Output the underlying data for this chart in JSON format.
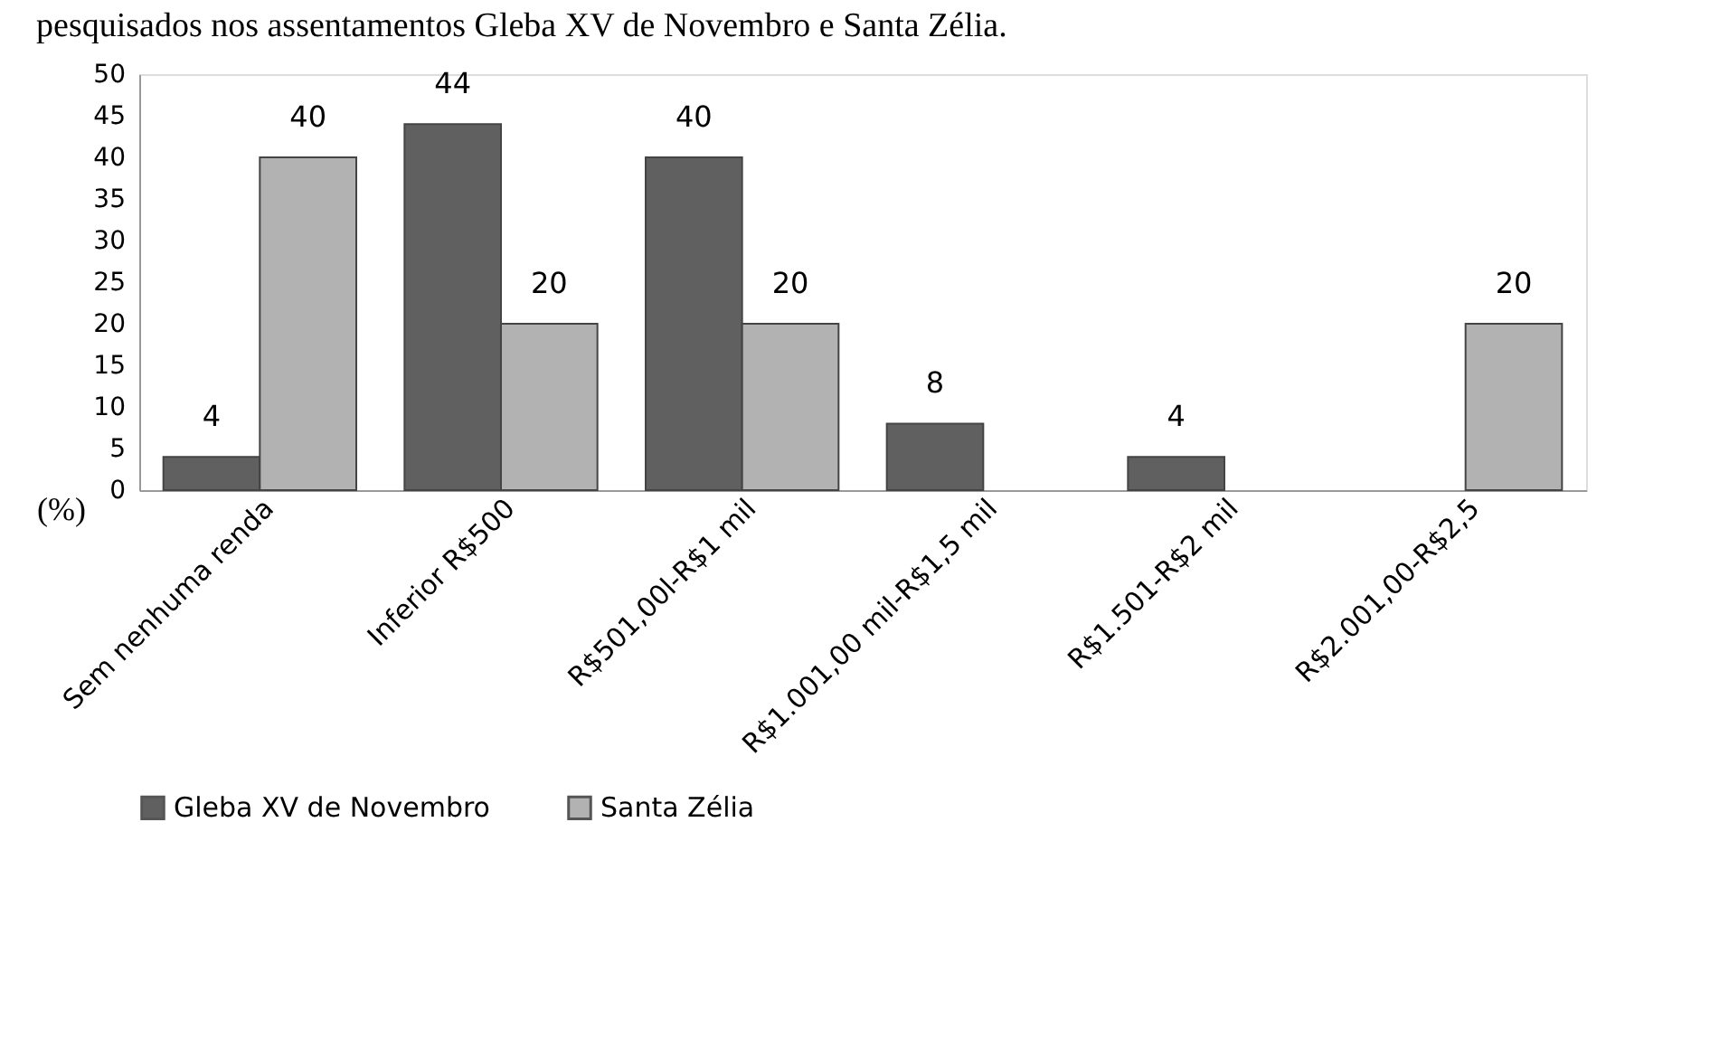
{
  "chart_data": {
    "type": "bar",
    "title": "pesquisados nos assentamentos Gleba XV de Novembro e Santa Zélia.",
    "ylabel": "(%)",
    "categories": [
      "Sem nenhuma renda",
      "Inferior R$500",
      "R$501,00l-R$1 mil",
      "R$1.001,00 mil-R$1,5 mil",
      "R$1.501-R$2 mil",
      "R$2.001,00-R$2,5"
    ],
    "series": [
      {
        "name": "Gleba XV de Novembro",
        "color": "#606060",
        "values": [
          4,
          44,
          40,
          8,
          4,
          null
        ]
      },
      {
        "name": "Santa Zélia",
        "color": "#b2b2b2",
        "values": [
          40,
          20,
          20,
          null,
          null,
          20
        ]
      }
    ],
    "ylim": [
      0,
      50
    ],
    "yticks": [
      0,
      5,
      10,
      15,
      20,
      25,
      30,
      35,
      40,
      45,
      50
    ],
    "grid": false,
    "legend": "bottom",
    "data_labels": true
  }
}
